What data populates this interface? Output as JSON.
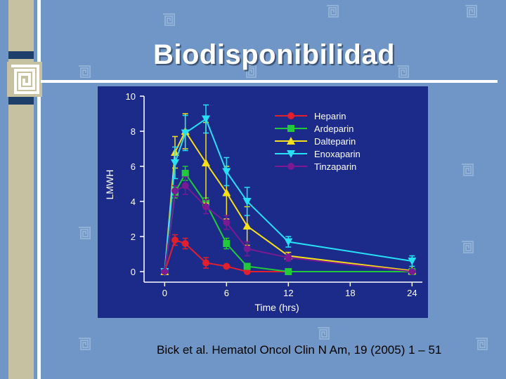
{
  "slide": {
    "title": "Biodisponibilidad",
    "citation": "Bick et al. Hematol Oncol Clin N Am, 19 (2005) 1 – 51"
  },
  "colors": {
    "background": "#6f96c6",
    "chart_bg": "#1c2a8a",
    "band": "#c5c1a1",
    "navy": "#1f3f6b"
  },
  "chart_data": {
    "type": "line",
    "xlabel": "Time (hrs)",
    "ylabel": "LMWH",
    "xlim": [
      -2,
      25
    ],
    "ylim": [
      -0.6,
      10
    ],
    "xticks": [
      0,
      6,
      12,
      18,
      24
    ],
    "yticks": [
      0,
      2,
      4,
      6,
      8,
      10
    ],
    "xtick_labels": [
      "0",
      "6",
      "12",
      "18",
      "24"
    ],
    "ytick_labels": [
      "0",
      "2",
      "4",
      "6",
      "8",
      "10"
    ],
    "legend_position": "top-right",
    "series": [
      {
        "name": "Heparin",
        "color": "#e0202c",
        "marker": "circle",
        "x": [
          0,
          1,
          2,
          4,
          6,
          8,
          12,
          24
        ],
        "y": [
          0,
          1.8,
          1.6,
          0.5,
          0.3,
          0,
          0,
          0
        ],
        "err": [
          0,
          0.3,
          0.3,
          0.3,
          0,
          0,
          0,
          0
        ]
      },
      {
        "name": "Ardeparin",
        "color": "#22c93a",
        "marker": "square",
        "x": [
          0,
          1,
          2,
          4,
          6,
          8,
          12,
          24
        ],
        "y": [
          0,
          4.5,
          5.6,
          3.9,
          1.6,
          0.3,
          0,
          0
        ],
        "err": [
          0,
          0.3,
          0.4,
          0.3,
          0.3,
          0,
          0,
          0
        ]
      },
      {
        "name": "Dalteparin",
        "color": "#f7e018",
        "marker": "triangle-up",
        "x": [
          0,
          1,
          2,
          4,
          6,
          8,
          12,
          24
        ],
        "y": [
          0,
          6.8,
          8.0,
          6.2,
          4.5,
          2.6,
          0.9,
          0.05
        ],
        "err": [
          0,
          0.9,
          1.0,
          2.3,
          1.5,
          1.1,
          0.2,
          0
        ]
      },
      {
        "name": "Enoxaparin",
        "color": "#28e0f5",
        "marker": "triangle-down",
        "x": [
          0,
          1,
          2,
          4,
          6,
          8,
          12,
          24
        ],
        "y": [
          0,
          6.2,
          7.9,
          8.7,
          5.7,
          4.0,
          1.7,
          0.6
        ],
        "err": [
          0,
          0.9,
          1.0,
          0.8,
          0.8,
          0.8,
          0.3,
          0.3
        ]
      },
      {
        "name": "Tinzaparin",
        "color": "#7a1a92",
        "marker": "circle",
        "x": [
          0,
          1,
          2,
          4,
          6,
          8,
          12,
          24
        ],
        "y": [
          0,
          4.6,
          4.9,
          3.7,
          2.8,
          1.3,
          0.8,
          0
        ],
        "err": [
          0,
          0.3,
          0.5,
          0.4,
          0.4,
          0.4,
          0.2,
          0
        ]
      }
    ]
  }
}
